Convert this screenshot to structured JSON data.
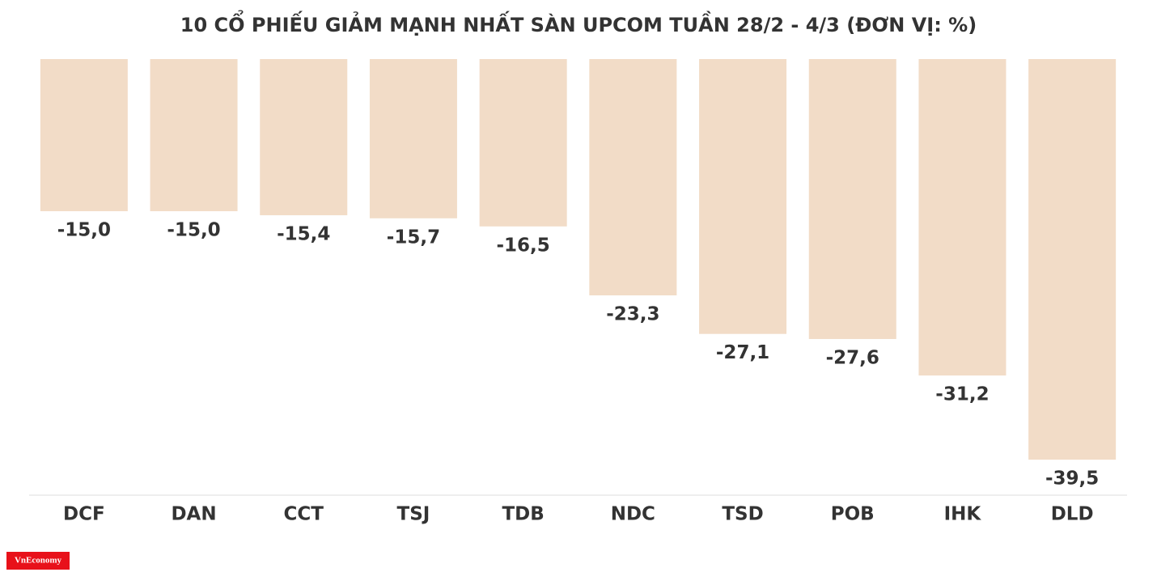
{
  "chart_data": {
    "type": "bar",
    "title": "10 CỔ PHIẾU GIẢM MẠNH NHẤT SÀN UPCOM TUẦN 28/2 - 4/3 (ĐƠN VỊ: %)",
    "categories": [
      "DCF",
      "DAN",
      "CCT",
      "TSJ",
      "TDB",
      "NDC",
      "TSD",
      "POB",
      "IHK",
      "DLD"
    ],
    "values": [
      -15.0,
      -15.0,
      -15.4,
      -15.7,
      -16.5,
      -23.3,
      -27.1,
      -27.6,
      -31.2,
      -39.5
    ],
    "value_labels": [
      "-15,0",
      "-15,0",
      "-15,4",
      "-15,7",
      "-16,5",
      "-23,3",
      "-27,1",
      "-27,6",
      "-31,2",
      "-39,5"
    ],
    "color": "#f2dcc7",
    "ylim": [
      0,
      -43
    ]
  },
  "logo": "VnEconomy"
}
